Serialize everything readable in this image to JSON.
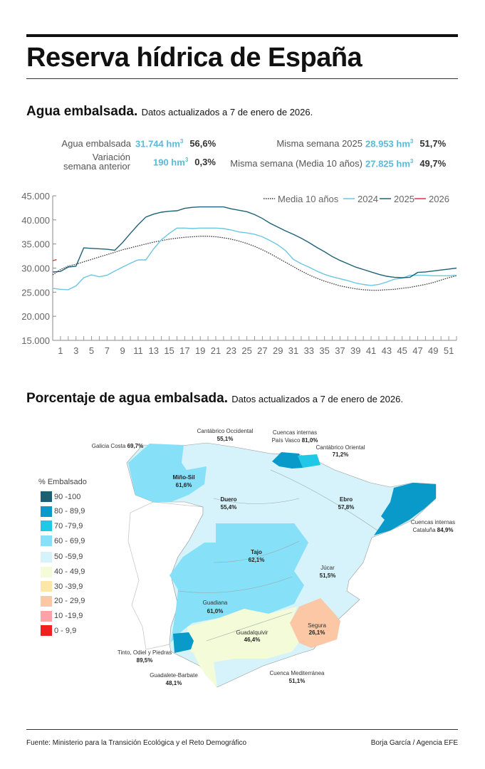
{
  "header": {
    "title": "Reserva hídrica de España"
  },
  "section1": {
    "title": "Agua embalsada.",
    "subtitle": "Datos actualizados a 7 de enero de 2026."
  },
  "stats": {
    "agua_label": "Agua embalsada",
    "agua_value": "31.744 hm",
    "agua_pct": "56,6%",
    "var_label1": "Variación",
    "var_label2": "semana anterior",
    "var_value": "190 hm",
    "var_pct": "0,3%",
    "m2025_label": "Misma semana 2025",
    "m2025_value": "28.953 hm",
    "m2025_pct": "51,7%",
    "media_label": "Misma semana (Media 10 años)",
    "media_value": "27.825 hm",
    "media_pct": "49,7%",
    "unit_exp": "3"
  },
  "chart_data": {
    "type": "line",
    "xlim": [
      0,
      52
    ],
    "ylim": [
      15000,
      45000
    ],
    "yticks": [
      15000,
      20000,
      25000,
      30000,
      35000,
      40000,
      45000
    ],
    "ytick_labels": [
      "15.000",
      "20.000",
      "25.000",
      "30.000",
      "35.000",
      "40.000",
      "45.000"
    ],
    "xticks": [
      1,
      3,
      5,
      7,
      9,
      11,
      13,
      15,
      17,
      19,
      21,
      23,
      25,
      27,
      29,
      31,
      33,
      35,
      37,
      39,
      41,
      43,
      45,
      47,
      49,
      51
    ],
    "grid": false,
    "legend_placement": "top-right",
    "series": [
      {
        "name": "Media 10 años",
        "color": "#333333",
        "style": "dotted",
        "values": [
          28600,
          29700,
          30400,
          30800,
          31300,
          31800,
          32300,
          32800,
          33300,
          33800,
          34200,
          34600,
          35000,
          35400,
          35700,
          36000,
          36200,
          36400,
          36500,
          36600,
          36600,
          36500,
          36300,
          36000,
          35600,
          35100,
          34500,
          33800,
          33000,
          32100,
          31200,
          30300,
          29400,
          28600,
          27900,
          27300,
          26800,
          26300,
          26000,
          25700,
          25500,
          25400,
          25400,
          25500,
          25600,
          25800,
          26000,
          26300,
          26600,
          27000,
          27500,
          28000,
          28400
        ]
      },
      {
        "name": "2024",
        "color": "#6cc6e2",
        "style": "solid",
        "values": [
          25800,
          25600,
          25500,
          26300,
          28000,
          28600,
          28200,
          28500,
          29400,
          30200,
          31000,
          31700,
          31700,
          34000,
          35900,
          37200,
          38300,
          38300,
          38200,
          38300,
          38300,
          38300,
          38200,
          37900,
          37500,
          37300,
          37000,
          36500,
          35700,
          34800,
          33600,
          31800,
          30900,
          30200,
          29400,
          28700,
          28200,
          27800,
          27400,
          26900,
          26600,
          26400,
          26600,
          27100,
          27700,
          27900,
          28500,
          28500,
          28500,
          28400,
          28400,
          28400,
          28500
        ]
      },
      {
        "name": "2025",
        "color": "#1f6275",
        "style": "solid",
        "values": [
          29200,
          29300,
          30200,
          30400,
          34200,
          34100,
          34000,
          33900,
          33700,
          35300,
          37200,
          39000,
          40600,
          41200,
          41600,
          41800,
          41900,
          42400,
          42600,
          42700,
          42700,
          42700,
          42700,
          42300,
          42000,
          41700,
          41100,
          40300,
          39300,
          38500,
          37700,
          37000,
          36200,
          35300,
          34300,
          33400,
          32400,
          31600,
          30900,
          30200,
          29700,
          29200,
          28700,
          28300,
          28100,
          28000,
          28100,
          29100,
          29200,
          29400,
          29600,
          29800,
          30000
        ]
      },
      {
        "name": "2026",
        "color": "#e8303a",
        "style": "solid",
        "x": [
          0,
          0.5
        ],
        "values": [
          31550,
          31744
        ]
      }
    ]
  },
  "section2": {
    "title": "Porcentaje de agua embalsada.",
    "subtitle": "Datos actualizados a 7 de enero de 2026."
  },
  "map": {
    "legend_title": "% Embalsado",
    "legend": [
      {
        "label": "90 -100",
        "color": "#1e5f72"
      },
      {
        "label": "80 - 89,9",
        "color": "#0a9ac9"
      },
      {
        "label": "70 -79,9",
        "color": "#1ec8e6"
      },
      {
        "label": "60 - 69,9",
        "color": "#85e0f8"
      },
      {
        "label": "50 -59,9",
        "color": "#d6f3fb"
      },
      {
        "label": "40 - 49,9",
        "color": "#f4fbd9"
      },
      {
        "label": "30 -39,9",
        "color": "#fde7a8"
      },
      {
        "label": "20 - 29,9",
        "color": "#fbc7a5"
      },
      {
        "label": "10 -19,9",
        "color": "#fca3a8"
      },
      {
        "label": "0 - 9,9",
        "color": "#f02020"
      }
    ],
    "basins": {
      "cantabrico_occ": {
        "name": "Cantábrico Occidental",
        "pct": "55,1%"
      },
      "galicia": {
        "name": "Galicia Costa",
        "pct": "69,7%"
      },
      "pais_vasco": {
        "name1": "Cuencas internas",
        "name2": "País Vasco",
        "pct": "81,0%"
      },
      "cantabrico_or": {
        "name": "Cantábrico Oriental",
        "pct": "71,2%"
      },
      "mino": {
        "name": "Miño-Sil",
        "pct": "61,6%"
      },
      "duero": {
        "name": "Duero",
        "pct": "55,4%"
      },
      "ebro": {
        "name": "Ebro",
        "pct": "57,8%"
      },
      "cataluna": {
        "name1": "Cuencas internas",
        "name2": "Cataluña",
        "pct": "84,9%"
      },
      "tajo": {
        "name": "Tajo",
        "pct": "62,1%"
      },
      "jucar": {
        "name": "Júcar",
        "pct": "51,5%"
      },
      "guadiana": {
        "name": "Guadiana",
        "pct": "61,0%"
      },
      "segura": {
        "name": "Segura",
        "pct": "26,1%"
      },
      "guadalquivir": {
        "name": "Guadalquivir",
        "pct": "46,4%"
      },
      "tinto": {
        "name": "Tinto, Odiel y Piedras",
        "pct": "89,5%"
      },
      "guadalete": {
        "name": "Guadalete-Barbate",
        "pct": "48,1%"
      },
      "mediterranea": {
        "name": "Cuenca Mediterránea",
        "pct": "51,1%"
      }
    }
  },
  "footer": {
    "source": "Fuente: Ministerio para la Transición Ecológica y el Reto Demográfico",
    "credit": "Borja García / Agencia EFE"
  }
}
